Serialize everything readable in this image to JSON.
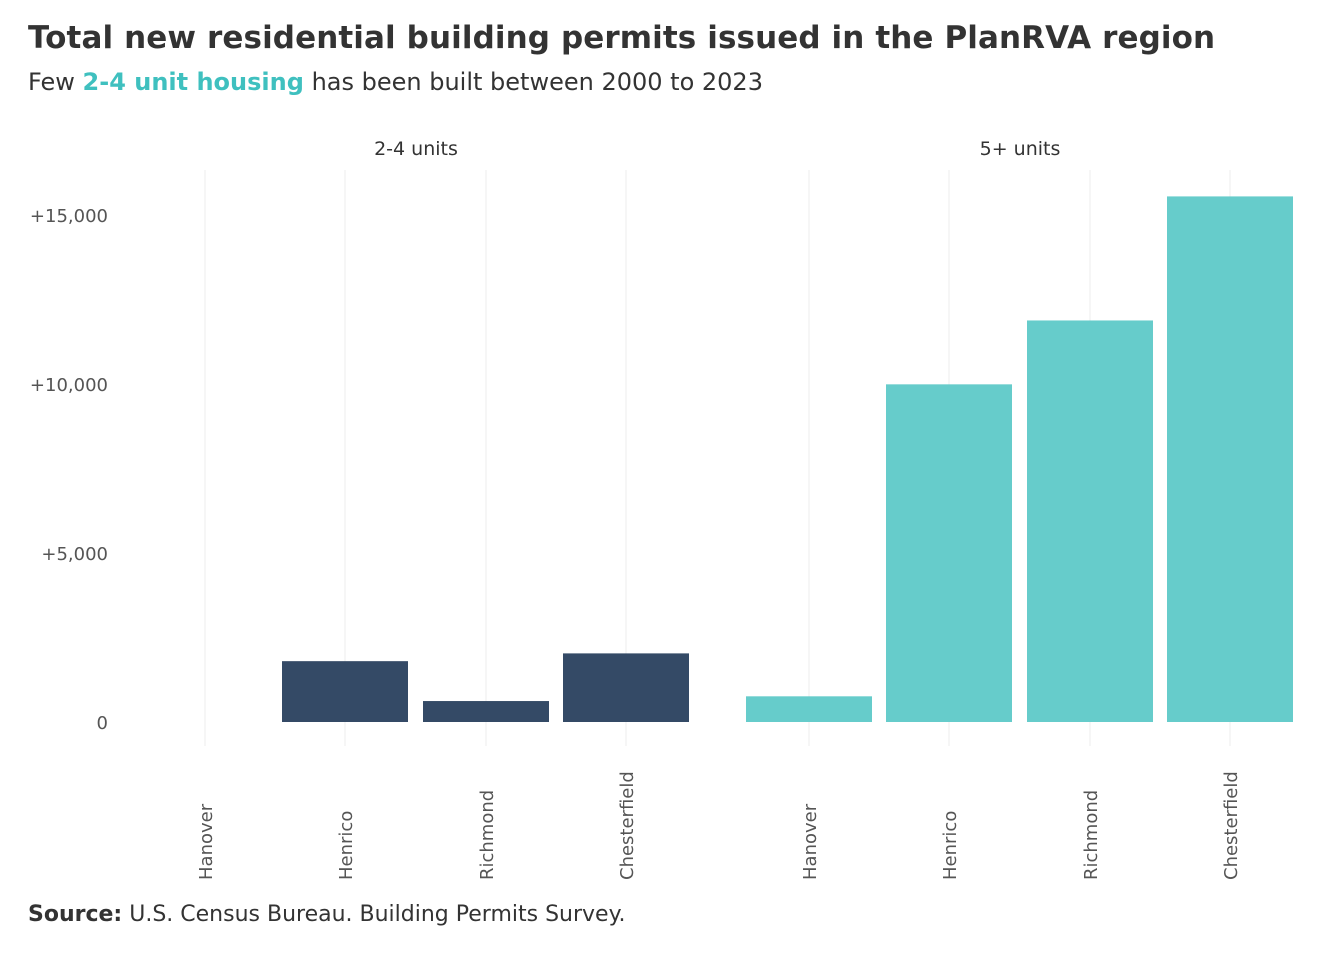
{
  "title": "Total new residential building permits issued in the PlanRVA region",
  "subtitle": {
    "prefix": "Few",
    "highlight": "2-4 unit housing",
    "suffix": "has been built between 2000 to 2023"
  },
  "caption": {
    "label": "Source:",
    "text": "U.S. Census Bureau. Building Permits Survey."
  },
  "colors": {
    "text": "#333333",
    "axis_text": "#555555",
    "grid": "#ececec",
    "highlight": "#3fc0bf"
  },
  "chart_data": {
    "type": "bar",
    "layout": "faceted",
    "ylim": [
      -1200,
      15800
    ],
    "y_ticks": [
      0,
      5000,
      10000,
      15000
    ],
    "y_tick_labels": [
      "0",
      "+5,000",
      "+10,000",
      "+15,000"
    ],
    "grid": true,
    "panels": [
      {
        "label": "2-4 units",
        "color": "#344a66",
        "categories": [
          "Hanover",
          "Henrico",
          "Richmond",
          "Chesterfield"
        ],
        "values": [
          0,
          1800,
          620,
          2030
        ]
      },
      {
        "label": "5+ units",
        "color": "#66cccb",
        "categories": [
          "Hanover",
          "Henrico",
          "Richmond",
          "Chesterfield"
        ],
        "values": [
          760,
          9990,
          11880,
          15550
        ]
      }
    ]
  }
}
